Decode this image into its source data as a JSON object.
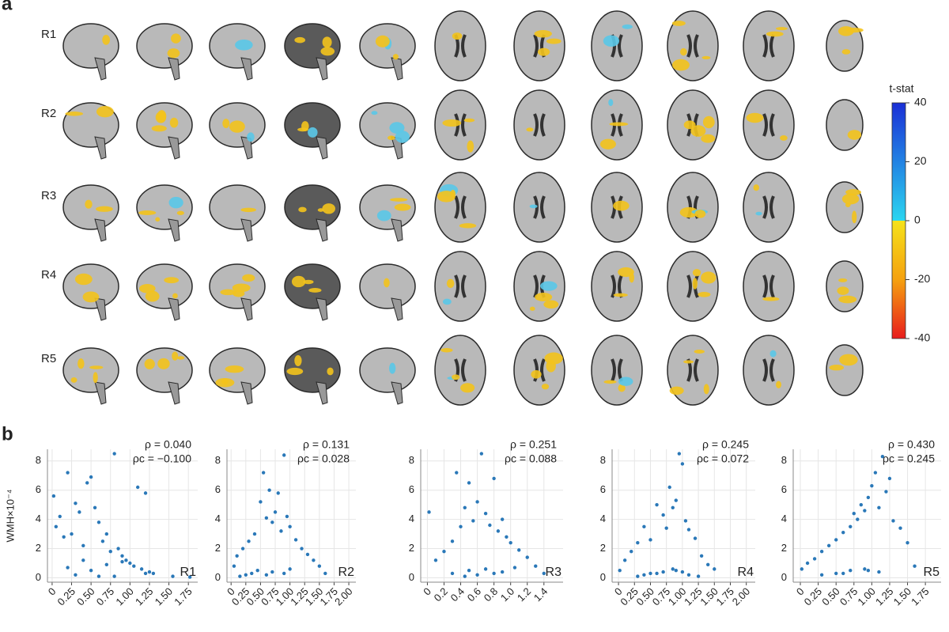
{
  "panel_labels": [
    "a",
    "b"
  ],
  "brain_maps": {
    "rows": [
      "R1",
      "R2",
      "R3",
      "R4",
      "R5"
    ],
    "colorbar": {
      "label": "t-stat",
      "ylim": [
        -40,
        40
      ],
      "ticks": [
        40,
        20,
        0,
        -20,
        -40
      ],
      "colors": [
        "#1a2fd6",
        "#2bd6f0",
        "#f5e21a",
        "#f5a10f",
        "#e81c1c"
      ]
    }
  },
  "chart_data": [
    {
      "type": "scatter",
      "label": "R1",
      "ylabel": "WMH×10⁻⁴",
      "annotations": [
        "ρ = 0.040",
        "ρc = −0.100"
      ],
      "color": "#2a78b8",
      "xlim": [
        -0.06,
        1.87
      ],
      "ylim": [
        -0.3,
        8.8
      ],
      "xticks": [
        0,
        0.25,
        {
          "value": 0.5,
          "label": "0.50"
        },
        0.75,
        {
          "value": 1,
          "label": "1.00"
        },
        1.25,
        {
          "value": 1.5,
          "label": "1.50"
        },
        1.75
      ],
      "yticks": [
        0,
        2,
        4,
        6,
        8
      ],
      "grid": true,
      "x": [
        0.02,
        0.05,
        0.1,
        0.15,
        0.2,
        0.25,
        0.3,
        0.35,
        0.4,
        0.45,
        0.5,
        0.55,
        0.6,
        0.65,
        0.7,
        0.75,
        0.8,
        0.85,
        0.9,
        0.95,
        1.0,
        1.05,
        1.1,
        1.15,
        1.2,
        1.25,
        1.3,
        0.8,
        0.5,
        0.3,
        0.6,
        1.2,
        1.55,
        1.77,
        0.2,
        0.4,
        0.7,
        0.9
      ],
      "y": [
        5.6,
        3.5,
        4.2,
        2.8,
        7.2,
        3.0,
        5.1,
        4.5,
        2.2,
        6.5,
        6.9,
        4.8,
        3.8,
        2.5,
        3.0,
        1.8,
        8.5,
        2.0,
        1.5,
        1.2,
        1.0,
        0.8,
        6.2,
        0.6,
        5.8,
        0.4,
        0.3,
        0.1,
        0.5,
        0.2,
        0.1,
        0.3,
        0.1,
        0.05,
        0.7,
        1.2,
        0.9,
        1.1
      ]
    },
    {
      "type": "scatter",
      "label": "R2",
      "annotations": [
        "ρ = 0.131",
        "ρc = 0.028"
      ],
      "color": "#2a78b8",
      "xlim": [
        -0.07,
        2.12
      ],
      "ylim": [
        -0.3,
        8.8
      ],
      "xticks": [
        0,
        0.25,
        {
          "value": 0.5,
          "label": "0.50"
        },
        0.75,
        {
          "value": 1,
          "label": "1.00"
        },
        1.25,
        {
          "value": 1.5,
          "label": "1.50"
        },
        1.75,
        {
          "value": 2,
          "label": "2.00"
        }
      ],
      "yticks": [
        0,
        2,
        4,
        6,
        8
      ],
      "grid": true,
      "x": [
        0.05,
        0.1,
        0.2,
        0.3,
        0.4,
        0.5,
        0.55,
        0.6,
        0.65,
        0.7,
        0.75,
        0.8,
        0.85,
        0.9,
        0.95,
        1.0,
        1.1,
        1.2,
        1.3,
        1.4,
        1.5,
        1.6,
        0.45,
        0.35,
        0.25,
        0.15,
        0.7,
        1.0,
        0.6,
        0.9
      ],
      "y": [
        0.8,
        1.5,
        2.0,
        2.5,
        3.0,
        5.2,
        7.2,
        4.1,
        6.0,
        3.8,
        4.5,
        5.8,
        3.2,
        8.4,
        4.2,
        3.5,
        2.6,
        2.0,
        1.6,
        1.2,
        0.8,
        0.3,
        0.5,
        0.3,
        0.2,
        0.1,
        0.4,
        0.6,
        0.2,
        0.3
      ]
    },
    {
      "type": "scatter",
      "label": "R3",
      "annotations": [
        "ρ = 0.251",
        "ρc = 0.088"
      ],
      "color": "#2a78b8",
      "xlim": [
        -0.08,
        1.63
      ],
      "ylim": [
        -0.3,
        8.8
      ],
      "xticks": [
        0,
        0.2,
        0.4,
        0.6,
        0.8,
        {
          "value": 1,
          "label": "1.0"
        },
        1.2,
        1.4
      ],
      "yticks": [
        0,
        2,
        4,
        6,
        8
      ],
      "grid": true,
      "x": [
        0.02,
        0.1,
        0.2,
        0.3,
        0.35,
        0.4,
        0.45,
        0.5,
        0.55,
        0.6,
        0.65,
        0.7,
        0.75,
        0.8,
        0.85,
        0.9,
        0.95,
        1.0,
        1.1,
        1.2,
        1.3,
        1.4,
        0.3,
        0.5,
        0.7,
        0.9,
        0.6,
        0.8,
        0.45,
        1.05
      ],
      "y": [
        4.5,
        1.2,
        1.8,
        2.5,
        7.2,
        3.5,
        4.8,
        6.5,
        3.9,
        5.2,
        8.5,
        4.4,
        3.6,
        6.8,
        3.2,
        4.0,
        2.8,
        2.4,
        1.9,
        1.4,
        0.8,
        0.3,
        0.3,
        0.5,
        0.6,
        0.4,
        0.2,
        0.3,
        0.1,
        0.7
      ]
    },
    {
      "type": "scatter",
      "label": "R4",
      "annotations": [
        "ρ = 0.245",
        "ρc = 0.072"
      ],
      "color": "#2a78b8",
      "xlim": [
        -0.1,
        2.14
      ],
      "ylim": [
        -0.3,
        8.8
      ],
      "xticks": [
        0,
        0.25,
        {
          "value": 0.5,
          "label": "0.50"
        },
        0.75,
        {
          "value": 1,
          "label": "1.00"
        },
        1.25,
        {
          "value": 1.5,
          "label": "1.50"
        },
        1.75,
        {
          "value": 2,
          "label": "2.00"
        }
      ],
      "yticks": [
        0,
        2,
        4,
        6,
        8
      ],
      "grid": true,
      "x": [
        0.02,
        0.1,
        0.2,
        0.3,
        0.4,
        0.5,
        0.6,
        0.7,
        0.75,
        0.8,
        0.85,
        0.9,
        0.95,
        1.0,
        1.05,
        1.1,
        1.2,
        1.3,
        1.4,
        1.5,
        0.5,
        0.7,
        0.9,
        1.1,
        0.3,
        0.6,
        0.85,
        1.0,
        0.4,
        1.25
      ],
      "y": [
        0.5,
        1.2,
        1.8,
        2.4,
        3.5,
        2.6,
        5.0,
        4.3,
        3.4,
        6.2,
        4.8,
        5.3,
        8.5,
        7.8,
        3.9,
        3.3,
        2.7,
        1.5,
        0.9,
        0.6,
        0.3,
        0.4,
        0.5,
        0.2,
        0.1,
        0.3,
        0.6,
        0.4,
        0.2,
        0.1
      ]
    },
    {
      "type": "scatter",
      "label": "R5",
      "annotations": [
        "ρ = 0.430",
        "ρc = 0.245"
      ],
      "color": "#2a78b8",
      "xlim": [
        -0.1,
        1.97
      ],
      "ylim": [
        -0.3,
        8.8
      ],
      "xticks": [
        0,
        0.25,
        {
          "value": 0.5,
          "label": "0.50"
        },
        0.75,
        {
          "value": 1,
          "label": "1.00"
        },
        1.25,
        {
          "value": 1.5,
          "label": "1.50"
        },
        1.75
      ],
      "yticks": [
        0,
        2,
        4,
        6,
        8
      ],
      "grid": true,
      "x": [
        0.02,
        0.1,
        0.2,
        0.3,
        0.4,
        0.5,
        0.6,
        0.7,
        0.75,
        0.8,
        0.85,
        0.9,
        0.95,
        1.0,
        1.05,
        1.1,
        1.15,
        1.2,
        1.25,
        1.3,
        1.4,
        1.5,
        1.6,
        0.5,
        0.7,
        0.9,
        1.1,
        0.3,
        0.6,
        0.95
      ],
      "y": [
        0.6,
        1.0,
        1.3,
        1.8,
        2.2,
        2.6,
        3.1,
        3.5,
        4.4,
        4.0,
        5.0,
        4.6,
        5.5,
        6.3,
        7.2,
        4.8,
        8.3,
        5.9,
        6.8,
        3.9,
        3.4,
        2.4,
        0.8,
        0.3,
        0.5,
        0.6,
        0.4,
        0.2,
        0.3,
        0.5
      ]
    }
  ]
}
